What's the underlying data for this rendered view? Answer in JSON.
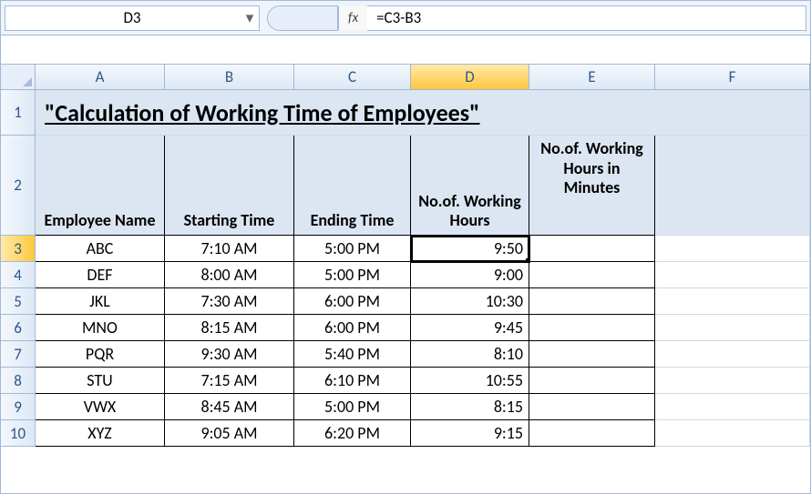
{
  "nameBox": "D3",
  "formula": "=C3-B3",
  "fxLabel": "fx",
  "columns": [
    "A",
    "B",
    "C",
    "D",
    "E",
    "F"
  ],
  "activeColumn": "D",
  "activeRow": "3",
  "title": "\"Calculation of Working Time of Employees\"",
  "headers": {
    "A": "Employee Name",
    "B": "Starting Time",
    "C": "Ending Time",
    "D": "No.of. Working Hours",
    "E": "No.of. Working Hours in Minutes"
  },
  "rows": [
    {
      "num": "3",
      "A": "ABC",
      "B": "7:10 AM",
      "C": "5:00 PM",
      "D": "9:50"
    },
    {
      "num": "4",
      "A": "DEF",
      "B": "8:00 AM",
      "C": "5:00 PM",
      "D": "9:00"
    },
    {
      "num": "5",
      "A": "JKL",
      "B": "7:30 AM",
      "C": "6:00 PM",
      "D": "10:30"
    },
    {
      "num": "6",
      "A": "MNO",
      "B": "8:15 AM",
      "C": "6:00 PM",
      "D": "9:45"
    },
    {
      "num": "7",
      "A": "PQR",
      "B": "9:30 AM",
      "C": "5:40 PM",
      "D": "8:10"
    },
    {
      "num": "8",
      "A": "STU",
      "B": "7:15 AM",
      "C": "6:10 PM",
      "D": "10:55"
    },
    {
      "num": "9",
      "A": "VWX",
      "B": "8:45 AM",
      "C": "5:00 PM",
      "D": "8:15"
    },
    {
      "num": "10",
      "A": "XYZ",
      "B": "9:05 AM",
      "C": "6:20 PM",
      "D": "9:15"
    }
  ],
  "colors": {
    "headerBg": "#dce6f2",
    "gridBorder": "#d0d7e5",
    "frameBorder": "#a0b8d8",
    "activeHighlight": "#ffc83d"
  },
  "rowHeights": {
    "title": 50,
    "header": 110,
    "data": 29
  }
}
